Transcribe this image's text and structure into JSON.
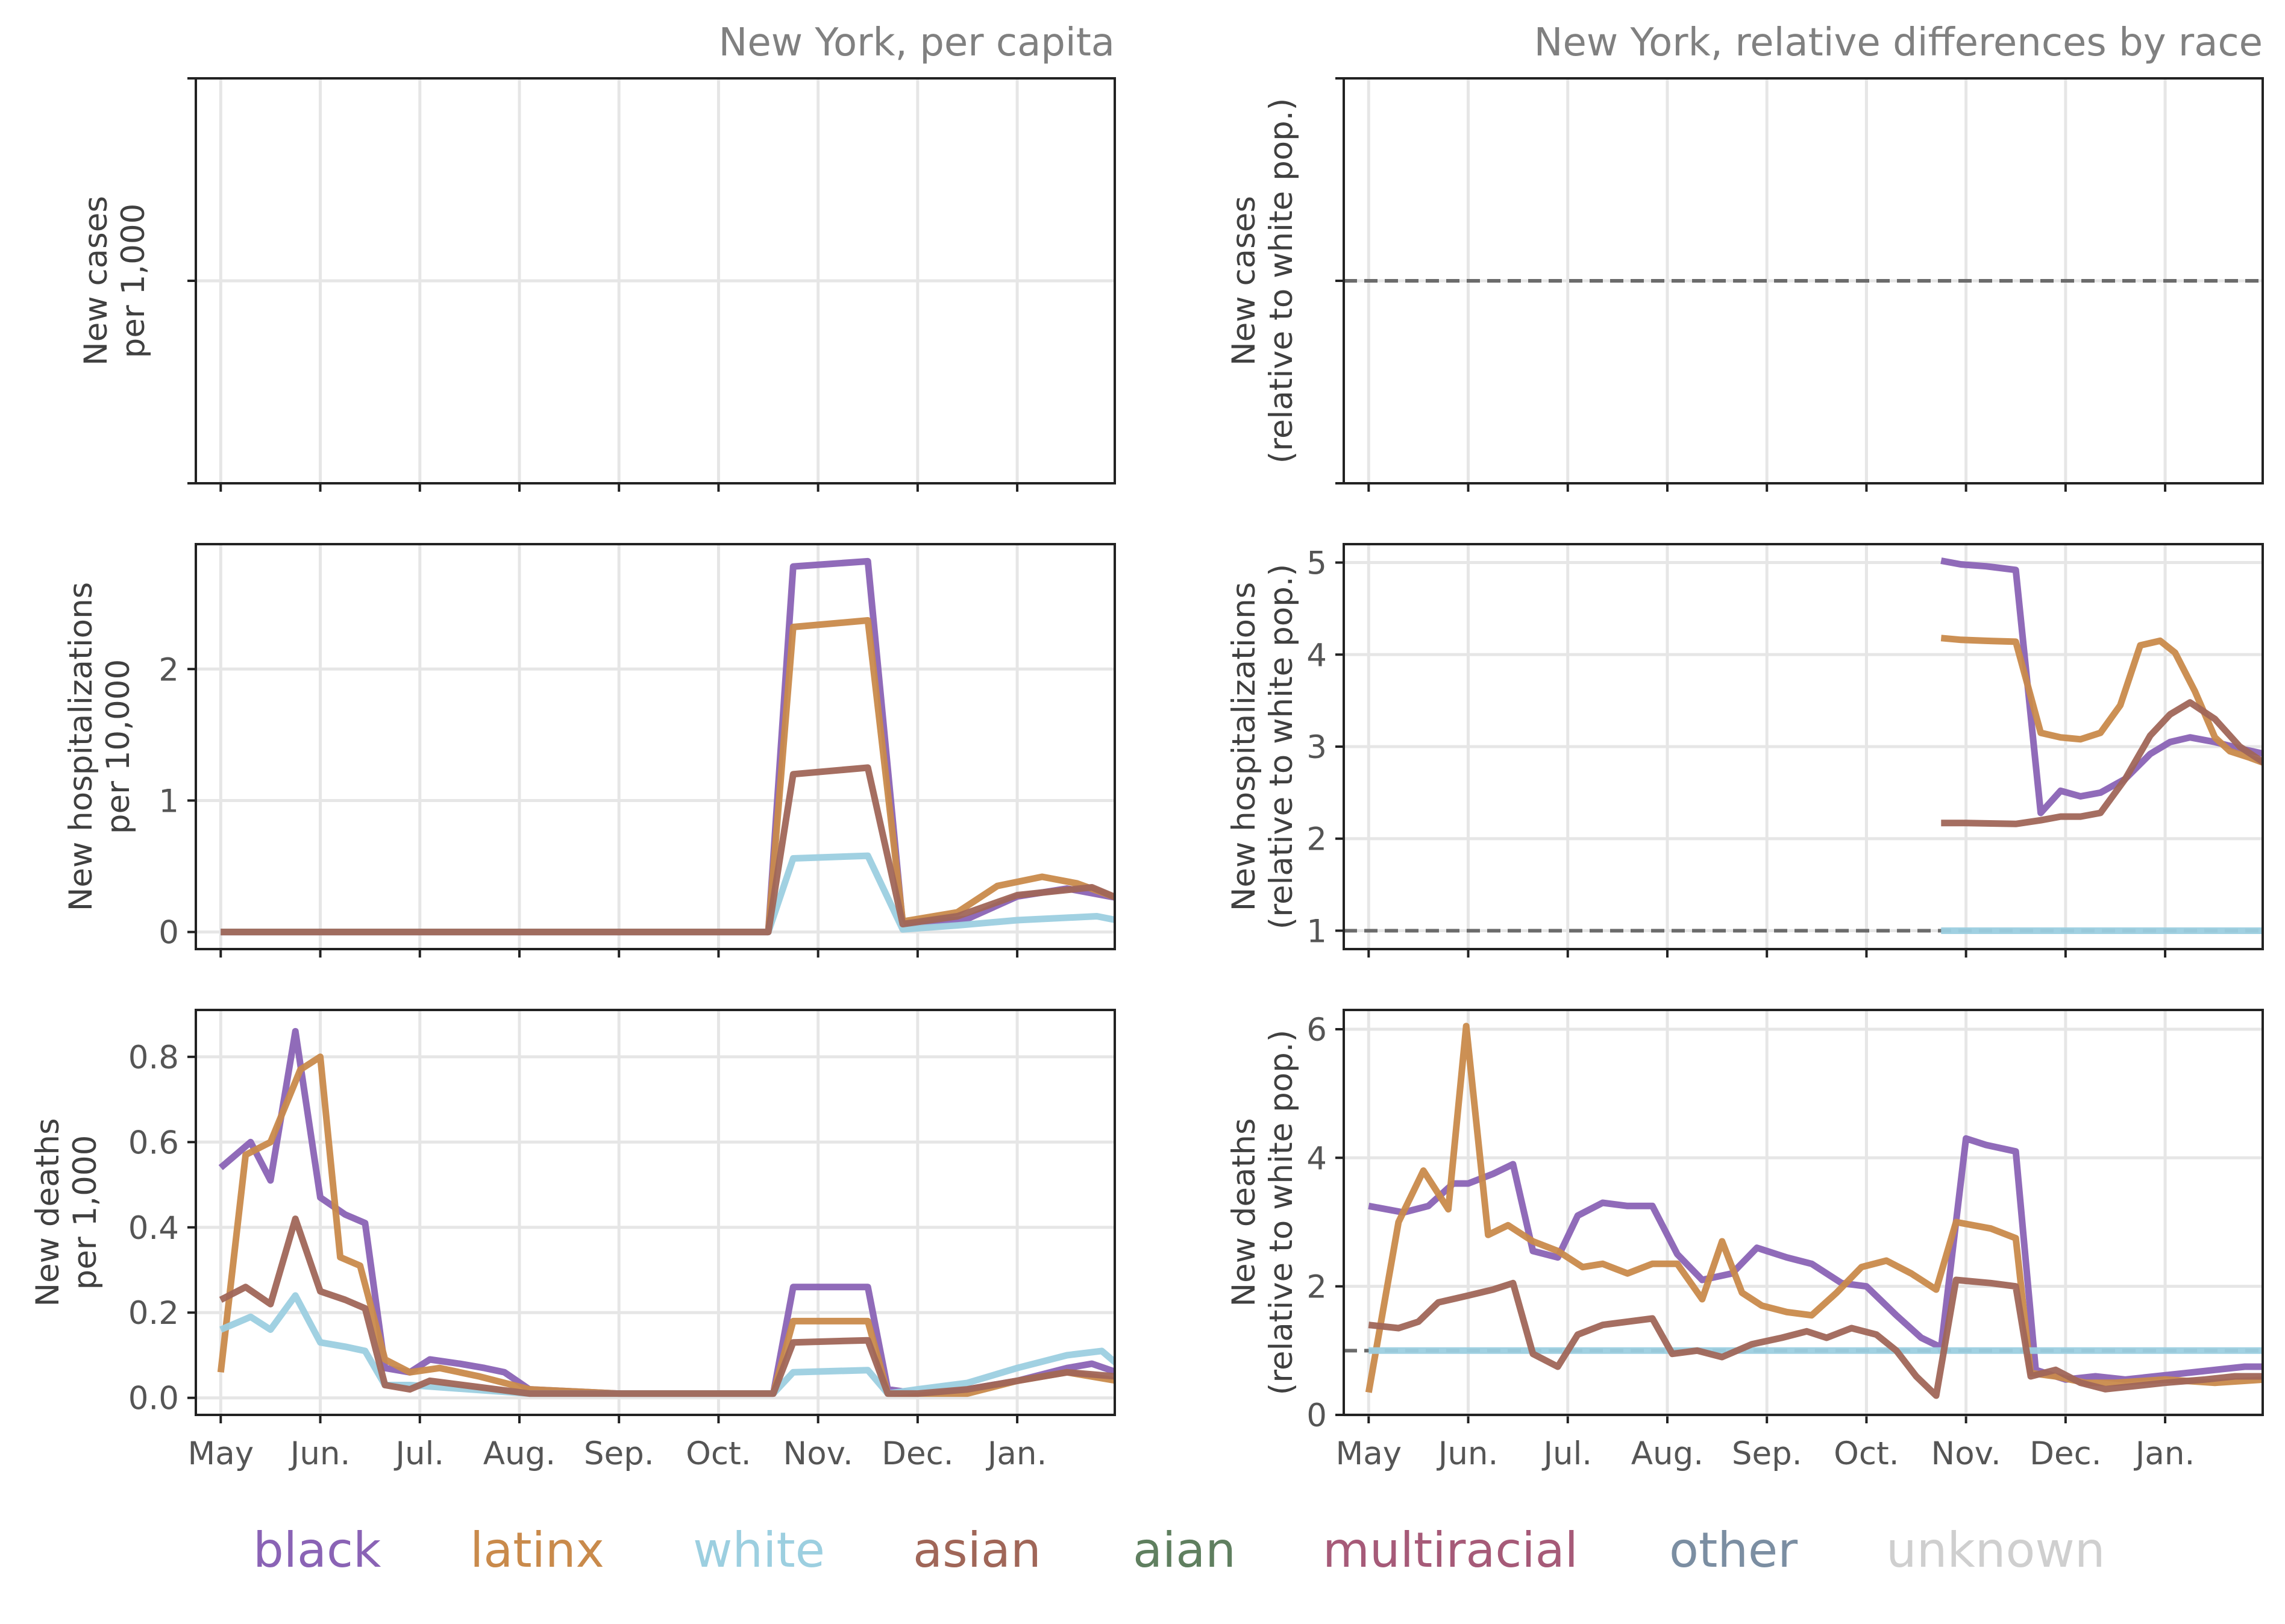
{
  "figure": {
    "titles": [
      "New York, per capita",
      "New York, relative differences by race"
    ]
  },
  "legend": [
    {
      "name": "black",
      "color": "#8a63b5"
    },
    {
      "name": "latinx",
      "color": "#c98a4b"
    },
    {
      "name": "white",
      "color": "#9ccfe0"
    },
    {
      "name": "asian",
      "color": "#a06658"
    },
    {
      "name": "aian",
      "color": "#5f7f5f"
    },
    {
      "name": "multiracial",
      "color": "#a65a78"
    },
    {
      "name": "other",
      "color": "#7b8ea2"
    },
    {
      "name": "unknown",
      "color": "#cfcfcf"
    }
  ],
  "chart_data": [
    {
      "type": "line",
      "title": "New York, per capita",
      "ylabel": "New cases\nper 1,000",
      "x_tick_labels": [
        "May",
        "Jun.",
        "Jul.",
        "Aug.",
        "Sep.",
        "Oct.",
        "Nov.",
        "Dec.",
        "Jan."
      ],
      "y_ticks": [],
      "grid": true,
      "series": []
    },
    {
      "type": "line",
      "title": "New York, relative differences by race",
      "ylabel": "New cases\n(relative to white pop.)",
      "x_tick_labels": [
        "May",
        "Jun.",
        "Jul.",
        "Aug.",
        "Sep.",
        "Oct.",
        "Nov.",
        "Dec.",
        "Jan."
      ],
      "y_ticks": [],
      "grid": true,
      "reference_line": 1,
      "series": []
    },
    {
      "type": "line",
      "ylabel": "New hospitalizations\nper 10,000",
      "x_tick_labels": [
        "May",
        "Jun.",
        "Jul.",
        "Aug.",
        "Sep.",
        "Oct.",
        "Nov.",
        "Dec.",
        "Jan."
      ],
      "ylim": [
        -0.13,
        2.95
      ],
      "y_ticks": [
        0,
        1,
        2
      ],
      "grid": true,
      "series": [
        {
          "name": "black",
          "x": [
            0,
            5.5,
            5.75,
            6.5,
            6.85,
            7.5,
            8.0,
            8.5,
            9.0
          ],
          "values": [
            0,
            0,
            2.78,
            2.82,
            0.06,
            0.1,
            0.27,
            0.33,
            0.26
          ]
        },
        {
          "name": "latinx",
          "x": [
            0,
            5.5,
            5.75,
            6.5,
            6.85,
            7.4,
            7.8,
            8.25,
            8.6,
            9.0
          ],
          "values": [
            0,
            0,
            2.32,
            2.37,
            0.08,
            0.15,
            0.35,
            0.42,
            0.37,
            0.26
          ]
        },
        {
          "name": "white",
          "x": [
            0,
            5.5,
            5.75,
            6.5,
            6.85,
            7.4,
            8.0,
            8.8,
            9.0
          ],
          "values": [
            0,
            0,
            0.56,
            0.58,
            0.02,
            0.05,
            0.09,
            0.12,
            0.09
          ]
        },
        {
          "name": "asian",
          "x": [
            0,
            5.5,
            5.75,
            6.5,
            6.85,
            7.4,
            8.0,
            8.75,
            9.0
          ],
          "values": [
            0,
            0,
            1.2,
            1.25,
            0.06,
            0.12,
            0.28,
            0.34,
            0.26
          ]
        }
      ]
    },
    {
      "type": "line",
      "ylabel": "New hospitalizations\n(relative to white pop.)",
      "x_tick_labels": [
        "May",
        "Jun.",
        "Jul.",
        "Aug.",
        "Sep.",
        "Oct.",
        "Nov.",
        "Dec.",
        "Jan."
      ],
      "ylim": [
        0.8,
        5.2
      ],
      "y_ticks": [
        1,
        2,
        3,
        4,
        5
      ],
      "grid": true,
      "reference_line": 1,
      "series": [
        {
          "name": "black",
          "x": [
            5.75,
            5.95,
            6.2,
            6.5,
            6.75,
            6.95,
            7.15,
            7.35,
            7.6,
            7.85,
            8.05,
            8.25,
            8.5,
            8.75,
            9.0
          ],
          "values": [
            5.02,
            4.98,
            4.96,
            4.92,
            2.28,
            2.52,
            2.46,
            2.5,
            2.65,
            2.92,
            3.05,
            3.1,
            3.05,
            2.98,
            2.92
          ]
        },
        {
          "name": "latinx",
          "x": [
            5.75,
            5.95,
            6.2,
            6.5,
            6.75,
            6.95,
            7.15,
            7.35,
            7.55,
            7.75,
            7.95,
            8.1,
            8.3,
            8.5,
            8.65,
            8.85,
            9.0
          ],
          "values": [
            4.18,
            4.16,
            4.15,
            4.14,
            3.15,
            3.1,
            3.08,
            3.15,
            3.45,
            4.1,
            4.15,
            4.02,
            3.6,
            3.1,
            2.95,
            2.88,
            2.82
          ]
        },
        {
          "name": "white",
          "x": [
            5.75,
            9.0
          ],
          "values": [
            1.0,
            1.0
          ]
        },
        {
          "name": "asian",
          "x": [
            5.75,
            6.0,
            6.5,
            6.75,
            6.95,
            7.15,
            7.35,
            7.6,
            7.85,
            8.05,
            8.25,
            8.5,
            8.75,
            9.0
          ],
          "values": [
            2.17,
            2.17,
            2.16,
            2.2,
            2.24,
            2.24,
            2.28,
            2.65,
            3.12,
            3.35,
            3.48,
            3.3,
            3.0,
            2.82
          ]
        }
      ]
    },
    {
      "type": "line",
      "ylabel": "New deaths\nper 1,000",
      "x_tick_labels": [
        "May",
        "Jun.",
        "Jul.",
        "Aug.",
        "Sep.",
        "Oct.",
        "Nov.",
        "Dec.",
        "Jan."
      ],
      "ylim": [
        -0.04,
        0.91
      ],
      "y_ticks": [
        0.0,
        0.2,
        0.4,
        0.6,
        0.8
      ],
      "y_tick_labels": [
        "0.0",
        "0.2",
        "0.4",
        "0.6",
        "0.8"
      ],
      "grid": true,
      "series": [
        {
          "name": "black",
          "x": [
            0,
            0.3,
            0.5,
            0.75,
            1.0,
            1.25,
            1.45,
            1.65,
            1.9,
            2.1,
            2.4,
            2.65,
            2.85,
            3.1,
            4.0,
            5.0,
            5.55,
            5.75,
            6.5,
            6.7,
            7.0,
            7.5,
            8.0,
            8.5,
            8.75,
            9.0
          ],
          "values": [
            0.54,
            0.6,
            0.51,
            0.86,
            0.47,
            0.43,
            0.41,
            0.07,
            0.06,
            0.09,
            0.08,
            0.07,
            0.06,
            0.02,
            0.01,
            0.01,
            0.01,
            0.26,
            0.26,
            0.02,
            0.01,
            0.02,
            0.04,
            0.07,
            0.08,
            0.06
          ]
        },
        {
          "name": "latinx",
          "x": [
            0,
            0.25,
            0.5,
            0.8,
            1.0,
            1.2,
            1.4,
            1.65,
            1.9,
            2.2,
            2.6,
            3.1,
            4.0,
            5.0,
            5.55,
            5.75,
            6.5,
            6.7,
            7.0,
            7.5,
            8.0,
            8.5,
            9.0
          ],
          "values": [
            0.06,
            0.57,
            0.6,
            0.77,
            0.8,
            0.33,
            0.31,
            0.09,
            0.06,
            0.07,
            0.05,
            0.02,
            0.01,
            0.01,
            0.01,
            0.18,
            0.18,
            0.01,
            0.01,
            0.01,
            0.04,
            0.06,
            0.04
          ]
        },
        {
          "name": "white",
          "x": [
            0,
            0.3,
            0.5,
            0.75,
            1.0,
            1.25,
            1.45,
            1.65,
            1.9,
            2.5,
            3.1,
            4.0,
            5.0,
            5.55,
            5.75,
            6.5,
            6.7,
            7.0,
            7.5,
            8.0,
            8.5,
            8.85,
            9.0
          ],
          "values": [
            0.16,
            0.19,
            0.16,
            0.24,
            0.13,
            0.12,
            0.11,
            0.03,
            0.03,
            0.02,
            0.01,
            0.01,
            0.01,
            0.01,
            0.06,
            0.065,
            0.01,
            0.02,
            0.035,
            0.07,
            0.1,
            0.11,
            0.08
          ]
        },
        {
          "name": "asian",
          "x": [
            0,
            0.25,
            0.5,
            0.75,
            1.0,
            1.25,
            1.45,
            1.65,
            1.9,
            2.1,
            3.1,
            4.0,
            5.0,
            5.55,
            5.75,
            6.5,
            6.7,
            7.0,
            7.5,
            8.0,
            8.5,
            9.0
          ],
          "values": [
            0.23,
            0.26,
            0.22,
            0.42,
            0.25,
            0.23,
            0.21,
            0.03,
            0.02,
            0.04,
            0.01,
            0.01,
            0.01,
            0.01,
            0.13,
            0.135,
            0.01,
            0.01,
            0.02,
            0.04,
            0.06,
            0.05
          ]
        }
      ]
    },
    {
      "type": "line",
      "ylabel": "New deaths\n(relative to white pop.)",
      "x_tick_labels": [
        "May",
        "Jun.",
        "Jul.",
        "Aug.",
        "Sep.",
        "Oct.",
        "Nov.",
        "Dec.",
        "Jan."
      ],
      "ylim": [
        0,
        6.3
      ],
      "y_ticks": [
        0,
        2,
        4,
        6
      ],
      "grid": true,
      "reference_line": 1,
      "series": [
        {
          "name": "black",
          "x": [
            0,
            0.35,
            0.6,
            0.85,
            1.0,
            1.25,
            1.45,
            1.65,
            1.9,
            2.1,
            2.35,
            2.6,
            2.85,
            3.1,
            3.35,
            3.65,
            3.9,
            4.2,
            4.45,
            4.75,
            5.0,
            5.3,
            5.55,
            5.75,
            6.0,
            6.2,
            6.5,
            6.7,
            7.0,
            7.3,
            7.6,
            7.9,
            8.2,
            8.5,
            8.8,
            9.0
          ],
          "values": [
            3.25,
            3.15,
            3.25,
            3.6,
            3.6,
            3.75,
            3.9,
            2.55,
            2.45,
            3.1,
            3.3,
            3.25,
            3.25,
            2.5,
            2.1,
            2.2,
            2.6,
            2.45,
            2.35,
            2.05,
            2.0,
            1.55,
            1.2,
            1.05,
            4.3,
            4.2,
            4.1,
            0.7,
            0.55,
            0.6,
            0.55,
            0.6,
            0.65,
            0.7,
            0.75,
            0.75
          ]
        },
        {
          "name": "latinx",
          "x": [
            0,
            0.3,
            0.55,
            0.8,
            0.98,
            1.2,
            1.4,
            1.65,
            1.9,
            2.15,
            2.35,
            2.6,
            2.85,
            3.1,
            3.35,
            3.55,
            3.75,
            3.95,
            4.2,
            4.45,
            4.7,
            4.95,
            5.2,
            5.45,
            5.7,
            5.9,
            6.25,
            6.5,
            6.65,
            6.9,
            7.2,
            7.5,
            8.0,
            8.5,
            9.0
          ],
          "values": [
            0.35,
            3.0,
            3.8,
            3.2,
            6.05,
            2.8,
            2.95,
            2.7,
            2.55,
            2.3,
            2.35,
            2.2,
            2.35,
            2.35,
            1.8,
            2.7,
            1.9,
            1.7,
            1.6,
            1.55,
            1.9,
            2.3,
            2.4,
            2.2,
            1.95,
            3.0,
            2.9,
            2.75,
            0.65,
            0.6,
            0.5,
            0.5,
            0.55,
            0.5,
            0.55
          ]
        },
        {
          "name": "white",
          "x": [
            0,
            9.0
          ],
          "values": [
            1.0,
            1.0
          ]
        },
        {
          "name": "asian",
          "x": [
            0,
            0.3,
            0.5,
            0.7,
            0.98,
            1.25,
            1.45,
            1.65,
            1.9,
            2.1,
            2.35,
            2.6,
            2.85,
            3.05,
            3.3,
            3.55,
            3.85,
            4.15,
            4.4,
            4.6,
            4.85,
            5.1,
            5.3,
            5.5,
            5.7,
            5.9,
            6.25,
            6.5,
            6.65,
            6.9,
            7.15,
            7.4,
            7.7,
            8.0,
            8.4,
            8.7,
            9.0
          ],
          "values": [
            1.4,
            1.35,
            1.45,
            1.75,
            1.85,
            1.95,
            2.05,
            0.95,
            0.75,
            1.25,
            1.4,
            1.45,
            1.5,
            0.95,
            1.0,
            0.9,
            1.1,
            1.2,
            1.3,
            1.2,
            1.35,
            1.25,
            1.0,
            0.6,
            0.3,
            2.1,
            2.05,
            2.0,
            0.6,
            0.7,
            0.5,
            0.4,
            0.45,
            0.5,
            0.55,
            0.6,
            0.6
          ]
        }
      ]
    }
  ]
}
